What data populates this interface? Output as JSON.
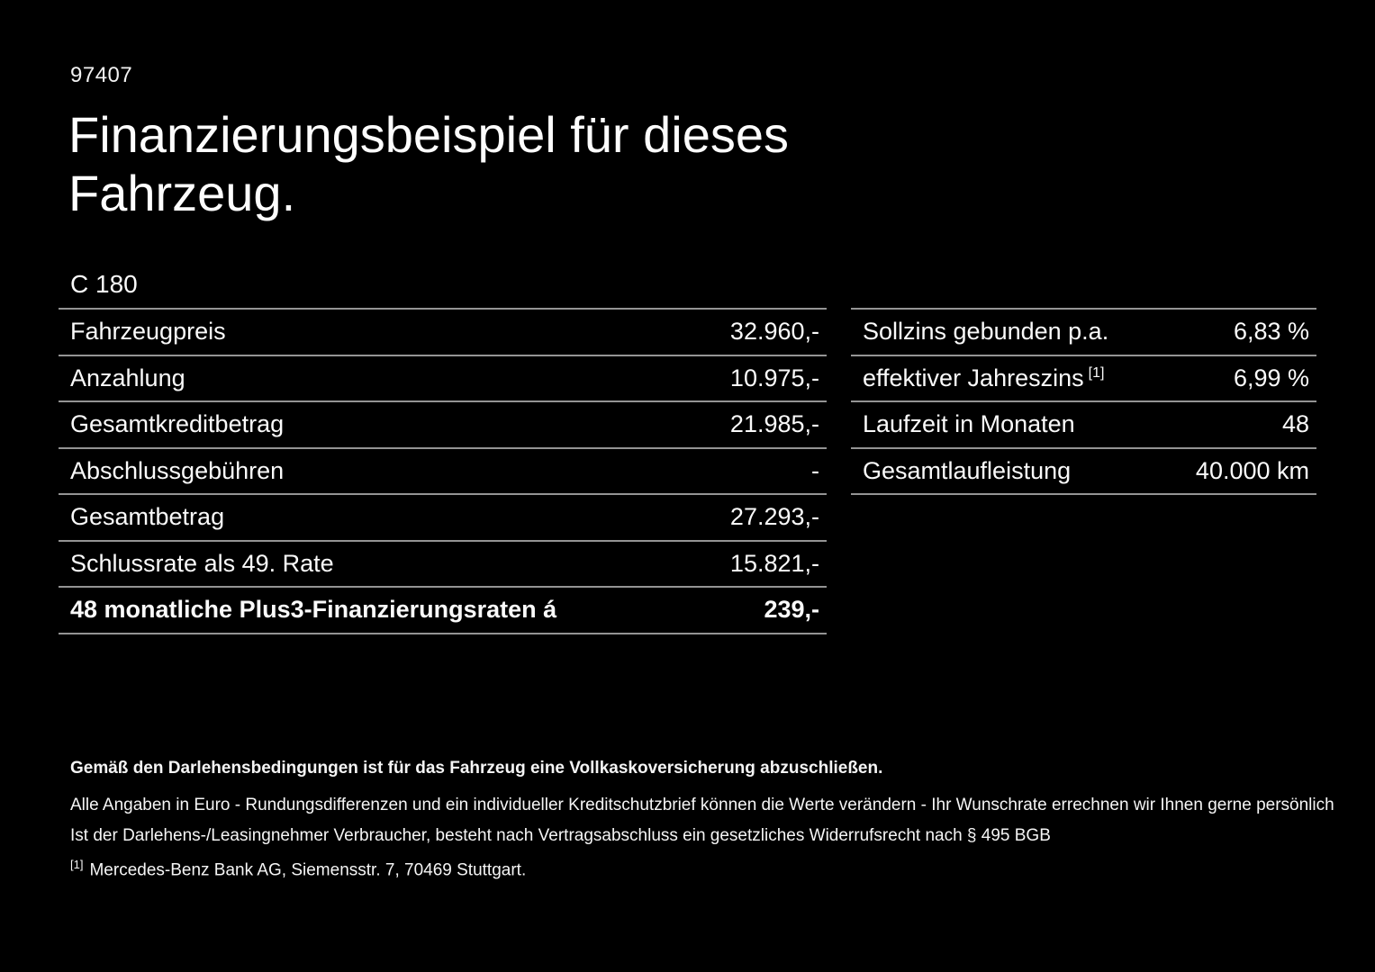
{
  "page": {
    "number": "97407",
    "title": "Finanzierungsbeispiel für dieses Fahrzeug.",
    "model": "C 180"
  },
  "left_table": {
    "rows": [
      {
        "label": "Fahrzeugpreis",
        "value": "32.960,-"
      },
      {
        "label": "Anzahlung",
        "value": "10.975,-"
      },
      {
        "label": "Gesamtkreditbetrag",
        "value": "21.985,-"
      },
      {
        "label": "Abschlussgebühren",
        "value": "-"
      },
      {
        "label": "Gesamtbetrag",
        "value": "27.293,-"
      },
      {
        "label": "Schlussrate als 49. Rate",
        "value": "15.821,-"
      },
      {
        "label": "48 monatliche Plus3-Finanzierungsraten á",
        "value": "239,-"
      }
    ]
  },
  "right_table": {
    "rows": [
      {
        "label": "Sollzins gebunden p.a.",
        "sup": "",
        "value": "6,83 %"
      },
      {
        "label": "effektiver Jahreszins",
        "sup": "[1]",
        "value": "6,99 %"
      },
      {
        "label": "Laufzeit in Monaten",
        "sup": "",
        "value": "48"
      },
      {
        "label": "Gesamtlaufleistung",
        "sup": "",
        "value": "40.000 km"
      }
    ]
  },
  "footnotes": {
    "bold_note": "Gemäß den Darlehensbedingungen ist für das Fahrzeug eine Vollkaskoversicherung abzuschließen.",
    "note1": "Alle Angaben in Euro - Rundungsdifferenzen und ein individueller Kreditschutzbrief können die Werte verändern - Ihr Wunschrate errechnen wir Ihnen gerne persönlich",
    "note2": "Ist der Darlehens-/Leasingnehmer Verbraucher, besteht nach Vertragsabschluss ein gesetzliches Widerrufsrecht nach § 495 BGB",
    "ref_marker": "[1]",
    "ref_text": "Mercedes-Benz Bank AG, Siemensstr. 7, 70469 Stuttgart."
  }
}
